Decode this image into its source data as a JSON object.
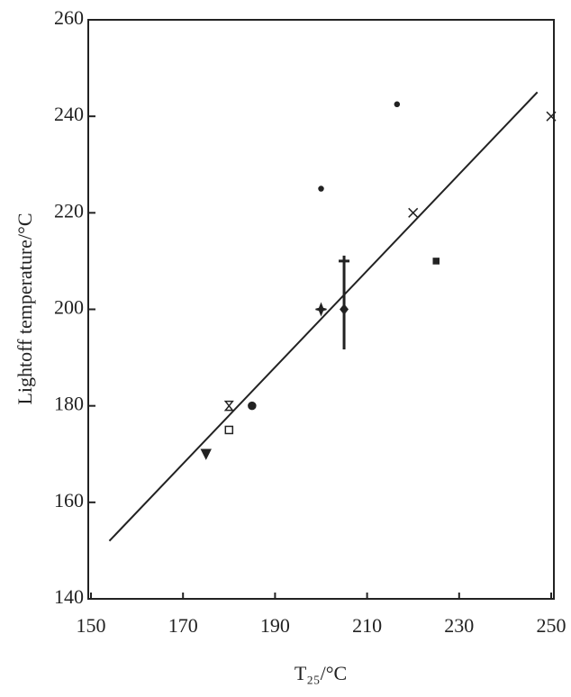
{
  "chart_data": {
    "type": "scatter",
    "x_label": "T₂₅/°C",
    "y_label": "Lightoff temperature/°C",
    "xlim": [
      150,
      250
    ],
    "xticks": [
      150,
      170,
      190,
      210,
      230,
      250
    ],
    "ylim": [
      140,
      260
    ],
    "yticks": [
      140,
      160,
      180,
      200,
      220,
      240,
      260
    ],
    "series": [
      {
        "x": [
          175,
          180,
          180,
          185,
          200,
          205,
          205,
          225,
          200,
          220,
          216.5,
          250
        ],
        "values": [
          170,
          175,
          180,
          180,
          200,
          200,
          210,
          210,
          225,
          220,
          242.5,
          240
        ],
        "markers": [
          "triangle-down",
          "square-open",
          "hourglass",
          "circle",
          "star",
          "diamond",
          "plus",
          "square",
          "dot",
          "cross",
          "dot",
          "cross"
        ],
        "color": "#222222"
      },
      {
        "x": [
          154,
          247
        ],
        "values": [
          152,
          245
        ],
        "style": "line",
        "color": "#222222"
      }
    ]
  }
}
